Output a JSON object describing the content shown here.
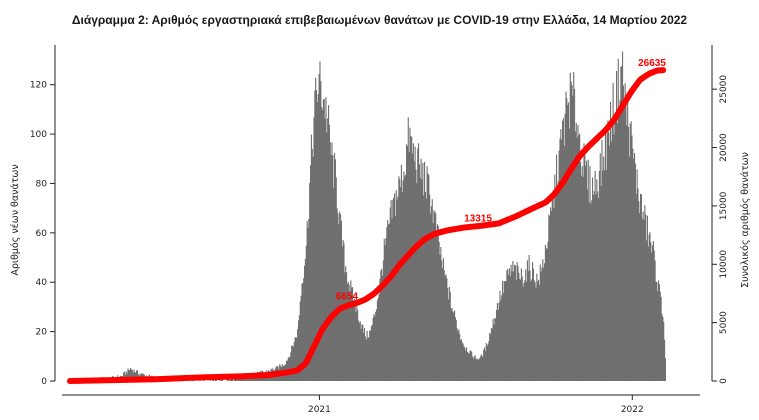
{
  "chart_data": {
    "type": "bar",
    "title": "Διάγραμμα 2: Αριθμός εργαστηριακά επιβεβαιωμένων θανάτων με COVID-19 στην Ελλάδα, 14 Μαρτίου 2022",
    "ylabel": "Αριθμός νέων θανάτων",
    "y2label": "Συνολικός αριθμός θανάτων",
    "ylim": [
      0,
      130
    ],
    "y2lim": [
      0,
      27500
    ],
    "yticks": [
      0,
      20,
      40,
      60,
      80,
      100,
      120
    ],
    "y2ticks": [
      0,
      5000,
      10000,
      15000,
      20000,
      25000
    ],
    "x_tick_labels": [
      {
        "label": "2021",
        "day": 291
      },
      {
        "label": "2022",
        "day": 656
      }
    ],
    "day_count": 735,
    "bar_color": "#6e6e6e",
    "cumulative_color": "#ff0000",
    "series": [
      {
        "name": "",
        "kind": "bar",
        "x_unit": "day",
        "points": [
          [
            0,
            0
          ],
          [
            50,
            1
          ],
          [
            60,
            2
          ],
          [
            70,
            5
          ],
          [
            80,
            3
          ],
          [
            100,
            1
          ],
          [
            140,
            0
          ],
          [
            170,
            0
          ],
          [
            200,
            1
          ],
          [
            220,
            3
          ],
          [
            240,
            5
          ],
          [
            250,
            7
          ],
          [
            255,
            10
          ],
          [
            260,
            15
          ],
          [
            265,
            20
          ],
          [
            270,
            40
          ],
          [
            275,
            55
          ],
          [
            280,
            85
          ],
          [
            285,
            110
          ],
          [
            289,
            121
          ],
          [
            293,
            118
          ],
          [
            297,
            112
          ],
          [
            300,
            105
          ],
          [
            305,
            90
          ],
          [
            310,
            80
          ],
          [
            315,
            62
          ],
          [
            320,
            48
          ],
          [
            325,
            40
          ],
          [
            330,
            33
          ],
          [
            335,
            28
          ],
          [
            340,
            22
          ],
          [
            345,
            18
          ],
          [
            350,
            20
          ],
          [
            355,
            27
          ],
          [
            360,
            37
          ],
          [
            365,
            50
          ],
          [
            370,
            60
          ],
          [
            375,
            68
          ],
          [
            380,
            75
          ],
          [
            385,
            80
          ],
          [
            390,
            88
          ],
          [
            395,
            99
          ],
          [
            400,
            92
          ],
          [
            405,
            88
          ],
          [
            410,
            84
          ],
          [
            415,
            80
          ],
          [
            420,
            75
          ],
          [
            425,
            65
          ],
          [
            430,
            55
          ],
          [
            435,
            45
          ],
          [
            440,
            38
          ],
          [
            445,
            30
          ],
          [
            450,
            24
          ],
          [
            455,
            18
          ],
          [
            460,
            14
          ],
          [
            465,
            12
          ],
          [
            470,
            10
          ],
          [
            475,
            9
          ],
          [
            480,
            10
          ],
          [
            485,
            14
          ],
          [
            490,
            20
          ],
          [
            495,
            26
          ],
          [
            500,
            33
          ],
          [
            505,
            38
          ],
          [
            510,
            42
          ],
          [
            515,
            45
          ],
          [
            520,
            44
          ],
          [
            525,
            42
          ],
          [
            530,
            43
          ],
          [
            535,
            46
          ],
          [
            540,
            44
          ],
          [
            545,
            40
          ],
          [
            550,
            45
          ],
          [
            555,
            55
          ],
          [
            560,
            65
          ],
          [
            565,
            78
          ],
          [
            570,
            90
          ],
          [
            575,
            102
          ],
          [
            580,
            112
          ],
          [
            585,
            116
          ],
          [
            590,
            108
          ],
          [
            595,
            95
          ],
          [
            600,
            85
          ],
          [
            605,
            80
          ],
          [
            610,
            78
          ],
          [
            615,
            82
          ],
          [
            620,
            88
          ],
          [
            625,
            95
          ],
          [
            630,
            105
          ],
          [
            635,
            112
          ],
          [
            640,
            120
          ],
          [
            643,
            128
          ],
          [
            648,
            110
          ],
          [
            655,
            95
          ],
          [
            660,
            82
          ],
          [
            665,
            72
          ],
          [
            670,
            65
          ],
          [
            675,
            58
          ],
          [
            680,
            52
          ],
          [
            685,
            40
          ],
          [
            690,
            30
          ],
          [
            692,
            25
          ],
          [
            695,
            0
          ]
        ]
      },
      {
        "name": "",
        "kind": "cumulative-line",
        "x_unit": "day",
        "points": [
          [
            0,
            0
          ],
          [
            100,
            150
          ],
          [
            150,
            300
          ],
          [
            200,
            400
          ],
          [
            230,
            500
          ],
          [
            250,
            700
          ],
          [
            265,
            900
          ],
          [
            275,
            1500
          ],
          [
            285,
            3000
          ],
          [
            295,
            4500
          ],
          [
            305,
            5500
          ],
          [
            315,
            6200
          ],
          [
            325,
            6500
          ],
          [
            335,
            6700
          ],
          [
            345,
            7000
          ],
          [
            355,
            7500
          ],
          [
            365,
            8200
          ],
          [
            375,
            9000
          ],
          [
            385,
            10000
          ],
          [
            395,
            10800
          ],
          [
            405,
            11600
          ],
          [
            415,
            12200
          ],
          [
            425,
            12600
          ],
          [
            440,
            12900
          ],
          [
            460,
            13150
          ],
          [
            480,
            13300
          ],
          [
            500,
            13500
          ],
          [
            520,
            14100
          ],
          [
            540,
            14800
          ],
          [
            555,
            15300
          ],
          [
            565,
            16000
          ],
          [
            575,
            17000
          ],
          [
            585,
            18200
          ],
          [
            595,
            19300
          ],
          [
            605,
            20100
          ],
          [
            615,
            20800
          ],
          [
            625,
            21500
          ],
          [
            635,
            22400
          ],
          [
            645,
            23600
          ],
          [
            655,
            24800
          ],
          [
            665,
            25800
          ],
          [
            675,
            26300
          ],
          [
            685,
            26600
          ],
          [
            692,
            26635
          ]
        ]
      }
    ],
    "annotations": [
      {
        "label": "6654",
        "day": 323,
        "value": 6654
      },
      {
        "label": "13315",
        "day": 476,
        "value": 13315
      },
      {
        "label": "26635",
        "day": 679,
        "value": 26635
      }
    ]
  }
}
